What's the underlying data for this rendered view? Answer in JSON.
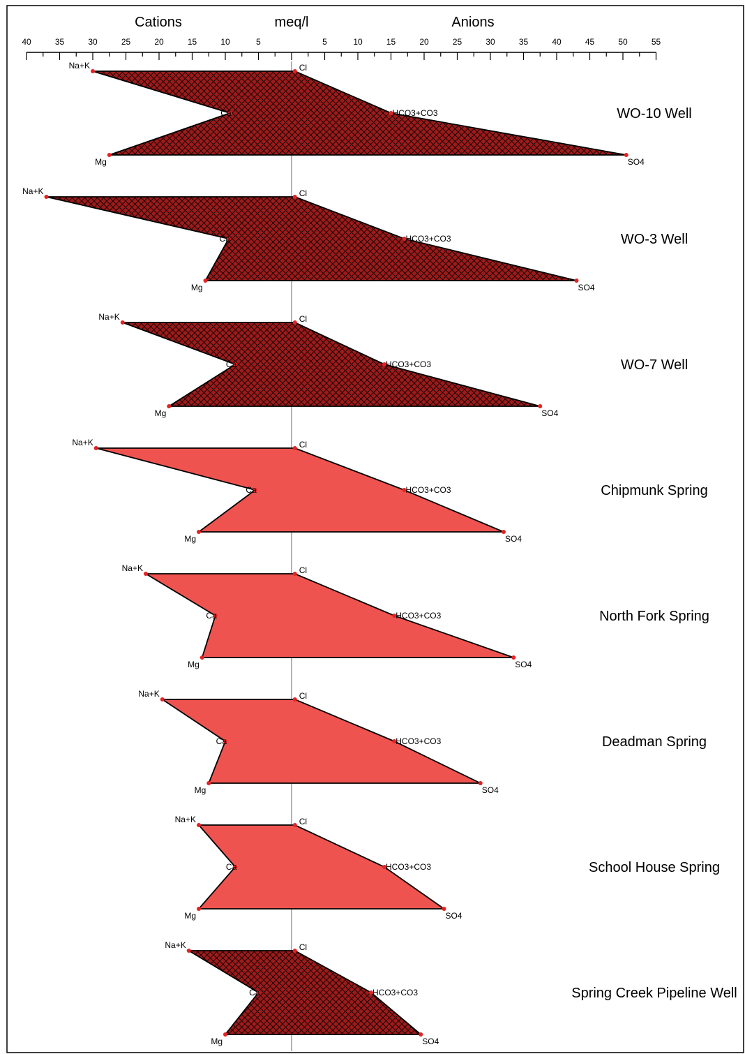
{
  "chart_data": {
    "type": "stiff",
    "header": {
      "left": "Cations",
      "center": "meq/l",
      "right": "Anions"
    },
    "x_axis": {
      "cation_ticks": [
        "40",
        "35",
        "30",
        "25",
        "20",
        "15",
        "10",
        "5"
      ],
      "anion_ticks": [
        "5",
        "10",
        "15",
        "20",
        "25",
        "30",
        "35",
        "40",
        "45",
        "50",
        "55"
      ],
      "cation_range": [
        0,
        40
      ],
      "anion_range": [
        0,
        55
      ]
    },
    "ion_labels": {
      "cations": [
        "Na+K",
        "Ca",
        "Mg"
      ],
      "anions": [
        "Cl",
        "HCO3+CO3",
        "SO4"
      ]
    },
    "colors": {
      "hatched_fill": "#9e1b1b",
      "solid_fill": "#ef5350",
      "point": "#e52222",
      "center_line": "#b3b3b3"
    },
    "series": [
      {
        "name": "WO-10 Well",
        "fill": "hatched",
        "cations": {
          "Na+K": 30,
          "Ca": 9.3,
          "Mg": 27.5
        },
        "anions": {
          "Cl": 0.5,
          "HCO3+CO3": 15,
          "SO4": 50.5
        }
      },
      {
        "name": "WO-3 Well",
        "fill": "hatched",
        "cations": {
          "Na+K": 37,
          "Ca": 9.5,
          "Mg": 13
        },
        "anions": {
          "Cl": 0.5,
          "HCO3+CO3": 17,
          "SO4": 43
        }
      },
      {
        "name": "WO-7 Well",
        "fill": "hatched",
        "cations": {
          "Na+K": 25.5,
          "Ca": 8.5,
          "Mg": 18.5
        },
        "anions": {
          "Cl": 0.5,
          "HCO3+CO3": 14,
          "SO4": 37.5
        }
      },
      {
        "name": "Chipmunk Spring",
        "fill": "solid",
        "cations": {
          "Na+K": 29.5,
          "Ca": 5.5,
          "Mg": 14
        },
        "anions": {
          "Cl": 0.5,
          "HCO3+CO3": 17,
          "SO4": 32
        }
      },
      {
        "name": "North Fork Spring",
        "fill": "solid",
        "cations": {
          "Na+K": 22,
          "Ca": 11.5,
          "Mg": 13.5
        },
        "anions": {
          "Cl": 0.5,
          "HCO3+CO3": 15.5,
          "SO4": 33.5
        }
      },
      {
        "name": "Deadman Spring",
        "fill": "solid",
        "cations": {
          "Na+K": 19.5,
          "Ca": 10,
          "Mg": 12.5
        },
        "anions": {
          "Cl": 0.5,
          "HCO3+CO3": 15.5,
          "SO4": 28.5
        }
      },
      {
        "name": "School House Spring",
        "fill": "solid",
        "cations": {
          "Na+K": 14,
          "Ca": 8.5,
          "Mg": 14
        },
        "anions": {
          "Cl": 0.5,
          "HCO3+CO3": 14,
          "SO4": 23
        }
      },
      {
        "name": "Spring Creek Pipeline Well",
        "fill": "hatched",
        "cations": {
          "Na+K": 15.5,
          "Ca": 5,
          "Mg": 10
        },
        "anions": {
          "Cl": 0.5,
          "HCO3+CO3": 12,
          "SO4": 19.5
        }
      }
    ]
  }
}
